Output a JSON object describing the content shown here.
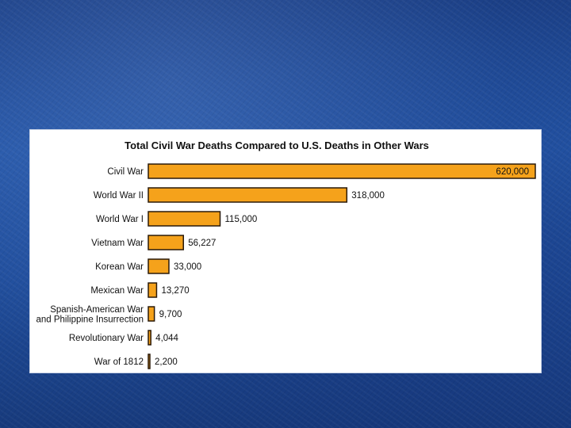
{
  "chart_data": {
    "type": "bar",
    "orientation": "horizontal",
    "title": "Total Civil War Deaths Compared to U.S. Deaths in Other Wars",
    "categories": [
      "Civil War",
      "World War II",
      "World War I",
      "Vietnam War",
      "Korean War",
      "Mexican War",
      "Spanish-American War\nand Philippine Insurrection",
      "Revolutionary War",
      "War of 1812"
    ],
    "values": [
      620000,
      318000,
      115000,
      56227,
      33000,
      13270,
      9700,
      4044,
      2200
    ],
    "value_labels": [
      "620,000",
      "318,000",
      "115,000",
      "56,227",
      "33,000",
      "13,270",
      "9,700",
      "4,044",
      "2,200"
    ],
    "xlim": [
      0,
      620000
    ],
    "bar_color": "#f5a21b",
    "bar_border": "#2a1a0a",
    "legend": "none",
    "grid": false
  }
}
